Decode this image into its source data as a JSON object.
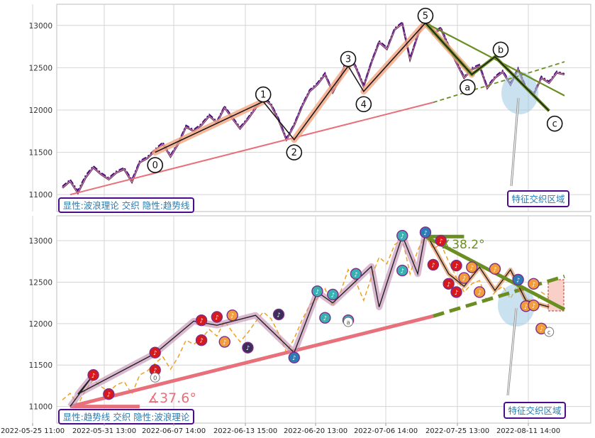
{
  "chart_data": [
    {
      "type": "line",
      "title": "",
      "ylim": [
        10800,
        13250
      ],
      "yticks": [
        11000,
        11500,
        12000,
        12500,
        13000
      ],
      "grid": true,
      "series": [
        {
          "style": "candle-trace",
          "color": "#5b1a4d",
          "values": [
            11080,
            11160,
            11020,
            11200,
            11320,
            11240,
            11180,
            11260,
            11300,
            11150,
            11380,
            11430,
            11520,
            11600,
            11450,
            11600,
            11800,
            11750,
            11820,
            11930,
            11850,
            12030,
            11900,
            11780,
            11890,
            12020,
            12140,
            12060,
            11880,
            11650,
            11820,
            12040,
            12220,
            12300,
            12420,
            12210,
            12380,
            12650,
            12500,
            12280,
            12560,
            12800,
            12720,
            12950,
            13020,
            12600,
            12880,
            13080,
            12900,
            12960,
            12750,
            12560,
            12380,
            12480,
            12520,
            12260,
            12380,
            12450,
            12300,
            12480,
            12260,
            12180,
            12380,
            12320,
            12440,
            12420
          ]
        },
        {
          "style": "dashdot",
          "color": "#4b0c8c",
          "values": [
            11100,
            11180,
            11050,
            11230,
            11340,
            11260,
            11200,
            11280,
            11320,
            11180,
            11400,
            11450,
            11540,
            11620,
            11470,
            11620,
            11820,
            11770,
            11840,
            11950,
            11870,
            12050,
            11920,
            11800,
            11910,
            12040,
            12160,
            12080,
            11900,
            11670,
            11840,
            12060,
            12240,
            12320,
            12440,
            12230,
            12400,
            12670,
            12520,
            12300,
            12580,
            12820,
            12740,
            12970,
            13040,
            12620,
            12900,
            13100,
            12920,
            12980,
            12770,
            12580,
            12400,
            12500,
            12540,
            12280,
            12400,
            12470,
            12320,
            12500,
            12280,
            12200,
            12400,
            12340,
            12460,
            12430
          ]
        }
      ],
      "wave_points": [
        {
          "label": "0",
          "x_idx": 12,
          "y": 11500
        },
        {
          "label": "1",
          "x_idx": 26,
          "y": 12100
        },
        {
          "label": "2",
          "x_idx": 30,
          "y": 11650
        },
        {
          "label": "3",
          "x_idx": 37,
          "y": 12520
        },
        {
          "label": "4",
          "x_idx": 39,
          "y": 12220
        },
        {
          "label": "5",
          "x_idx": 47,
          "y": 13030
        },
        {
          "label": "a",
          "x_idx": 53,
          "y": 12420
        },
        {
          "label": "b",
          "x_idx": 56,
          "y": 12630
        },
        {
          "label": "c",
          "x_idx": 63,
          "y": 11990
        }
      ],
      "trendline_support": {
        "from": {
          "x_idx": 1,
          "y": 11000
        },
        "to": {
          "x_idx": 48,
          "y": 12090
        },
        "extend_to": {
          "x_idx": 65,
          "y": 12570
        }
      },
      "trendline_resistance": {
        "from": {
          "x_idx": 47,
          "y": 13030
        },
        "to": {
          "x_idx": 65,
          "y": 12170
        }
      },
      "annotation_label": "特征交织区域",
      "legend_box": "显性:波浪理论 交织 隐性:趋势线"
    },
    {
      "type": "line",
      "title": "",
      "ylim": [
        10800,
        13300
      ],
      "yticks": [
        11000,
        11500,
        12000,
        12500,
        13000
      ],
      "grid": true,
      "series": [
        {
          "style": "dashed",
          "color": "#f0a020",
          "values": [
            11080,
            11160,
            11020,
            11200,
            11320,
            11240,
            11180,
            11260,
            11300,
            11150,
            11380,
            11430,
            11520,
            11600,
            11450,
            11600,
            11800,
            11750,
            11820,
            11930,
            11850,
            12030,
            11900,
            11780,
            11890,
            12020,
            12140,
            12060,
            11880,
            11650,
            11820,
            12040,
            12220,
            12300,
            12420,
            12210,
            12380,
            12650,
            12500,
            12280,
            12560,
            12800,
            12720,
            12950,
            13020,
            12600,
            12880,
            13080,
            12900,
            12960,
            12750,
            12560,
            12380,
            12480,
            12520,
            12260,
            12380,
            12450,
            12300,
            12480,
            12260,
            12180,
            12380,
            12320,
            12440,
            12420
          ]
        }
      ],
      "angle_labels": [
        {
          "text": "∡37.6°",
          "color": "#e8707a"
        },
        {
          "text": "∡38.2°",
          "color": "#6b8e23"
        }
      ],
      "annotation_label": "特征交织区域",
      "legend_box": "显性:趋势线 交织 隐性:波浪理论"
    }
  ],
  "x_axis": {
    "ticks": [
      "2022-05-25 11:00",
      "2022-05-31 13:00",
      "2022-06-07 14:00",
      "2022-06-13 15:00",
      "2022-06-20 13:00",
      "2022-07-06 14:00",
      "2022-07-25 13:00",
      "2022-08-11 14:00"
    ]
  },
  "colors": {
    "trend_support": "#e8707a",
    "trend_resistance": "#6b8e23",
    "wave_line": "#1a1a1a",
    "wave_highlight": "#f4a582",
    "zone_fill": "#9ecae1",
    "legend_border": "#4b0c8c",
    "legend_text": "#2a7ab0"
  }
}
